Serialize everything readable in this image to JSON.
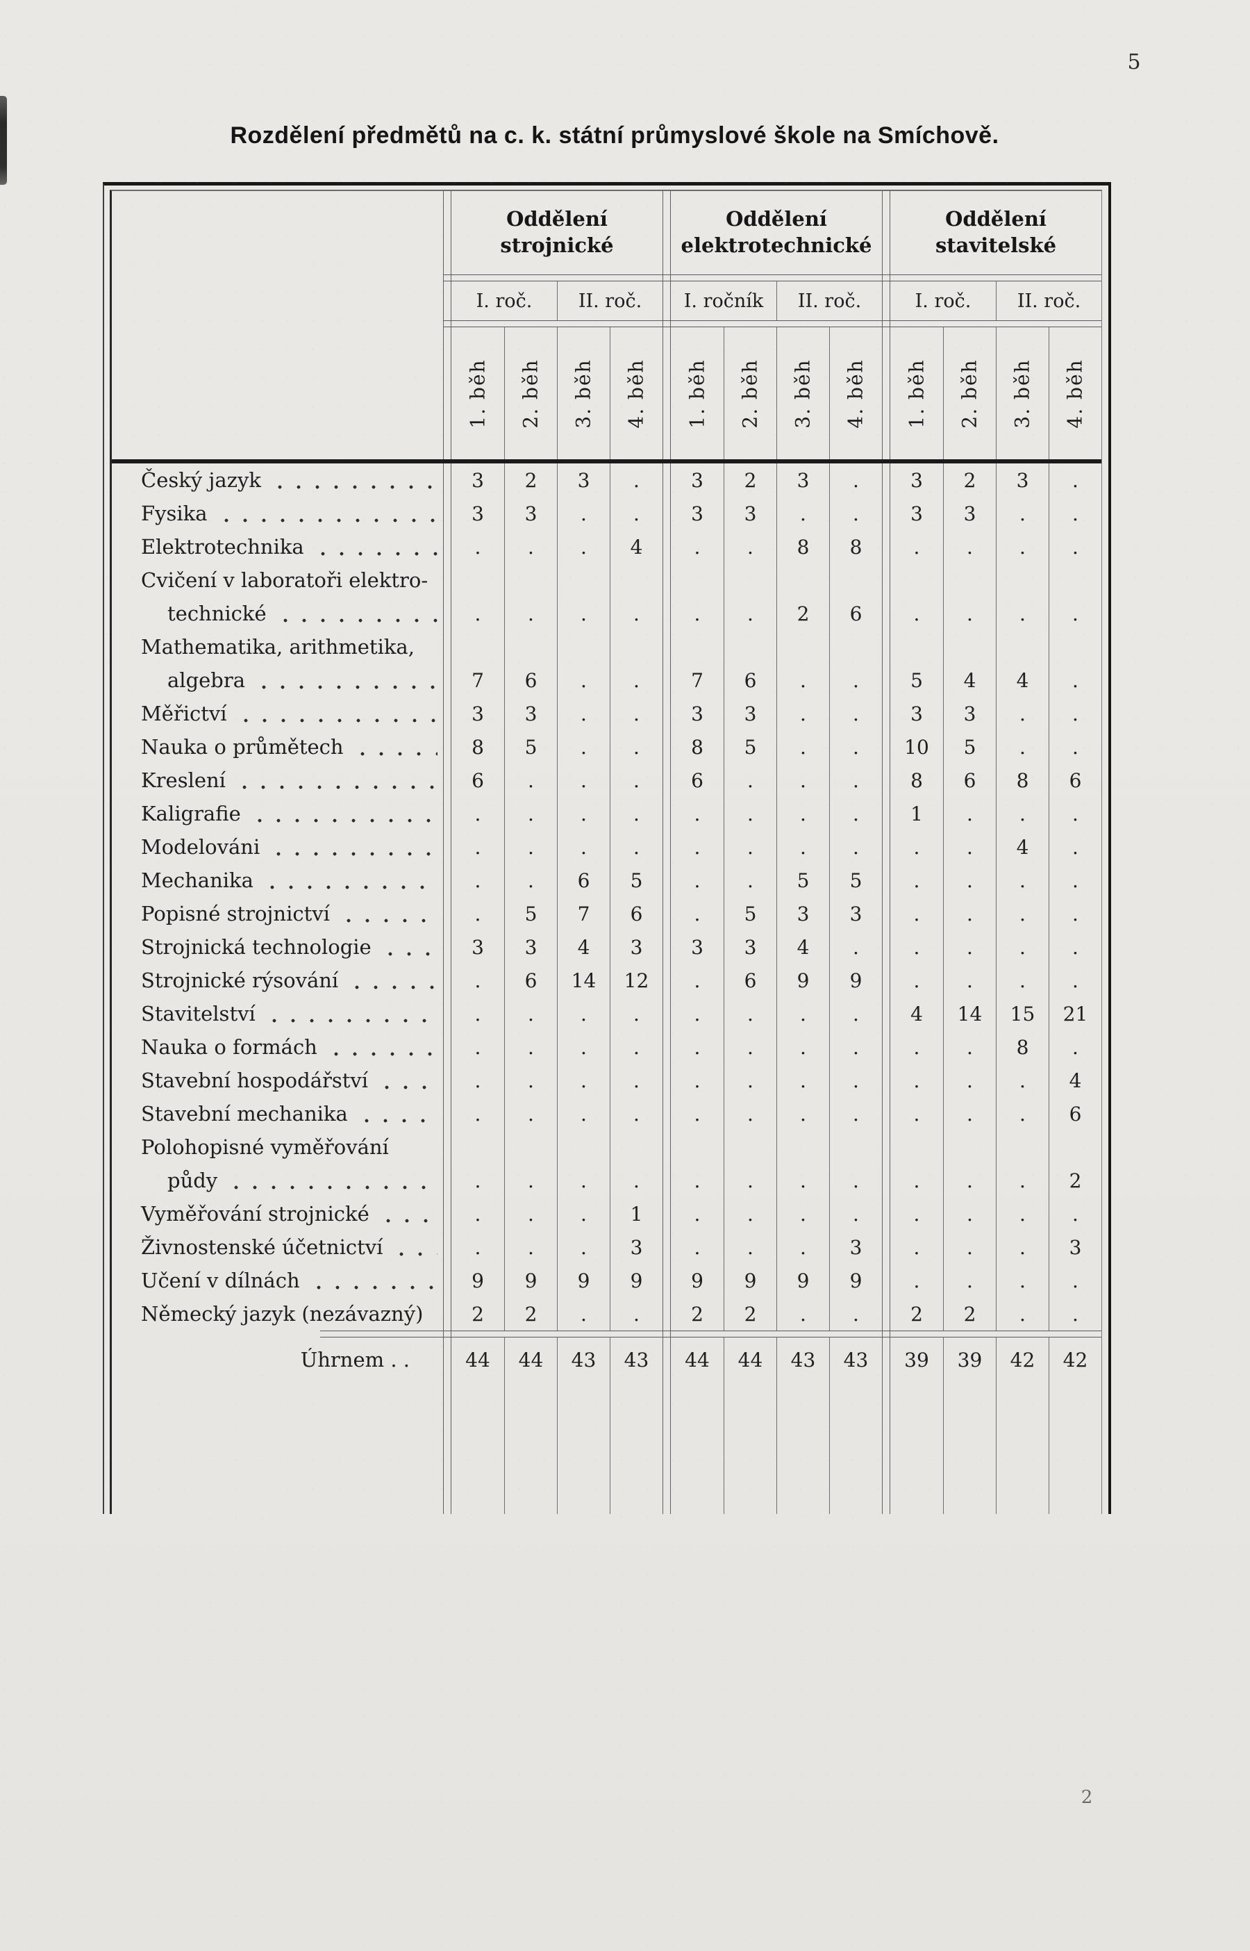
{
  "page": {
    "number": "5",
    "title": "Rozdělení předmětů na c. k. státní průmyslové škole na Smíchově.",
    "signature": "2"
  },
  "table": {
    "departments": [
      {
        "label_lines": [
          "Oddělení strojnické"
        ],
        "years": [
          "I. roč.",
          "II. roč."
        ]
      },
      {
        "label_lines": [
          "Oddělení",
          "elektrotechnické"
        ],
        "years": [
          "I. ročník",
          "II. roč."
        ]
      },
      {
        "label_lines": [
          "Oddělení",
          "stavitelské"
        ],
        "years": [
          "I. roč.",
          "II. roč."
        ]
      }
    ],
    "run_labels": [
      "1. běh",
      "2. běh",
      "3. běh",
      "4. běh"
    ],
    "rows": [
      {
        "label_lines": [
          "Český jazyk"
        ],
        "cells": [
          "3",
          "2",
          "3",
          ".",
          "3",
          "2",
          "3",
          ".",
          "3",
          "2",
          "3",
          "."
        ]
      },
      {
        "label_lines": [
          "Fysika"
        ],
        "cells": [
          "3",
          "3",
          ".",
          ".",
          "3",
          "3",
          ".",
          ".",
          "3",
          "3",
          ".",
          "."
        ]
      },
      {
        "label_lines": [
          "Elektrotechnika"
        ],
        "cells": [
          ".",
          ".",
          ".",
          "4",
          ".",
          ".",
          "8",
          "8",
          ".",
          ".",
          ".",
          "."
        ]
      },
      {
        "label_lines": [
          "Cvičení v laboratoři elektro-",
          "technické"
        ],
        "cells": [
          ".",
          ".",
          ".",
          ".",
          ".",
          ".",
          "2",
          "6",
          ".",
          ".",
          ".",
          "."
        ]
      },
      {
        "label_lines": [
          "Mathematika, arithmetika,",
          "algebra"
        ],
        "cells": [
          "7",
          "6",
          ".",
          ".",
          "7",
          "6",
          ".",
          ".",
          "5",
          "4",
          "4",
          "."
        ]
      },
      {
        "label_lines": [
          "Měřictví"
        ],
        "cells": [
          "3",
          "3",
          ".",
          ".",
          "3",
          "3",
          ".",
          ".",
          "3",
          "3",
          ".",
          "."
        ]
      },
      {
        "label_lines": [
          "Nauka o průmětech"
        ],
        "cells": [
          "8",
          "5",
          ".",
          ".",
          "8",
          "5",
          ".",
          ".",
          "10",
          "5",
          ".",
          "."
        ]
      },
      {
        "label_lines": [
          "Kreslení"
        ],
        "cells": [
          "6",
          ".",
          ".",
          ".",
          "6",
          ".",
          ".",
          ".",
          "8",
          "6",
          "8",
          "6"
        ]
      },
      {
        "label_lines": [
          "Kaligrafie"
        ],
        "cells": [
          ".",
          ".",
          ".",
          ".",
          ".",
          ".",
          ".",
          ".",
          "1",
          ".",
          ".",
          "."
        ]
      },
      {
        "label_lines": [
          "Modelováni"
        ],
        "cells": [
          ".",
          ".",
          ".",
          ".",
          ".",
          ".",
          ".",
          ".",
          ".",
          ".",
          "4",
          "."
        ]
      },
      {
        "label_lines": [
          "Mechanika"
        ],
        "cells": [
          ".",
          ".",
          "6",
          "5",
          ".",
          ".",
          "5",
          "5",
          ".",
          ".",
          ".",
          "."
        ]
      },
      {
        "label_lines": [
          "Popisné strojnictví"
        ],
        "cells": [
          ".",
          "5",
          "7",
          "6",
          ".",
          "5",
          "3",
          "3",
          ".",
          ".",
          ".",
          "."
        ]
      },
      {
        "label_lines": [
          "Strojnická technologie"
        ],
        "cells": [
          "3",
          "3",
          "4",
          "3",
          "3",
          "3",
          "4",
          ".",
          ".",
          ".",
          ".",
          "."
        ]
      },
      {
        "label_lines": [
          "Strojnické rýsování"
        ],
        "cells": [
          ".",
          "6",
          "14",
          "12",
          ".",
          "6",
          "9",
          "9",
          ".",
          ".",
          ".",
          "."
        ]
      },
      {
        "label_lines": [
          "Stavitelství"
        ],
        "cells": [
          ".",
          ".",
          ".",
          ".",
          ".",
          ".",
          ".",
          ".",
          "4",
          "14",
          "15",
          "21"
        ]
      },
      {
        "label_lines": [
          "Nauka o formách"
        ],
        "cells": [
          ".",
          ".",
          ".",
          ".",
          ".",
          ".",
          ".",
          ".",
          ".",
          ".",
          "8",
          "."
        ]
      },
      {
        "label_lines": [
          "Stavební hospodářství"
        ],
        "cells": [
          ".",
          ".",
          ".",
          ".",
          ".",
          ".",
          ".",
          ".",
          ".",
          ".",
          ".",
          "4"
        ]
      },
      {
        "label_lines": [
          "Stavební mechanika"
        ],
        "cells": [
          ".",
          ".",
          ".",
          ".",
          ".",
          ".",
          ".",
          ".",
          ".",
          ".",
          ".",
          "6"
        ]
      },
      {
        "label_lines": [
          "Polohopisné vyměřování",
          "půdy"
        ],
        "cells": [
          ".",
          ".",
          ".",
          ".",
          ".",
          ".",
          ".",
          ".",
          ".",
          ".",
          ".",
          "2"
        ]
      },
      {
        "label_lines": [
          "Vyměřování strojnické"
        ],
        "cells": [
          ".",
          ".",
          ".",
          "1",
          ".",
          ".",
          ".",
          ".",
          ".",
          ".",
          ".",
          "."
        ]
      },
      {
        "label_lines": [
          "Živnostenské účetnictví"
        ],
        "cells": [
          ".",
          ".",
          ".",
          "3",
          ".",
          ".",
          ".",
          "3",
          ".",
          ".",
          ".",
          "3"
        ]
      },
      {
        "label_lines": [
          "Učení v dílnách"
        ],
        "cells": [
          "9",
          "9",
          "9",
          "9",
          "9",
          "9",
          "9",
          "9",
          ".",
          ".",
          ".",
          "."
        ]
      },
      {
        "label_lines": [
          "Německý jazyk (nezávazný)"
        ],
        "cells": [
          "2",
          "2",
          ".",
          ".",
          "2",
          "2",
          ".",
          ".",
          "2",
          "2",
          ".",
          "."
        ]
      }
    ],
    "total": {
      "label": "Úhrnem . .",
      "cells": [
        "44",
        "44",
        "43",
        "43",
        "44",
        "44",
        "43",
        "43",
        "39",
        "39",
        "42",
        "42"
      ]
    }
  }
}
